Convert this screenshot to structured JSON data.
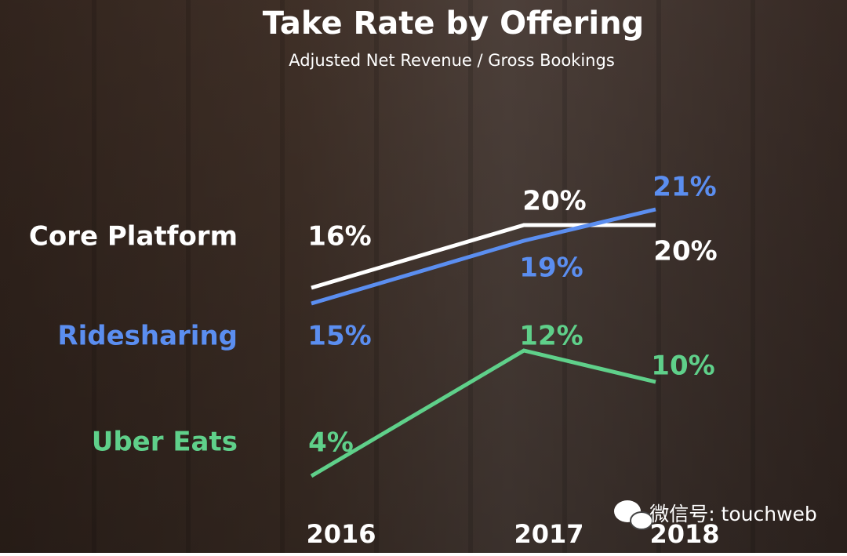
{
  "chart_data": {
    "type": "line",
    "title": "Take Rate by Offering",
    "subtitle": "Adjusted Net Revenue / Gross Bookings",
    "categories": [
      "2016",
      "2017",
      "2018"
    ],
    "series": [
      {
        "name": "Core Platform",
        "color": "#ffffff",
        "values": [
          16,
          20,
          20
        ],
        "value_labels": [
          "16%",
          "20%",
          "20%"
        ]
      },
      {
        "name": "Ridesharing",
        "color": "#5b8ef0",
        "values": [
          15,
          19,
          21
        ],
        "value_labels": [
          "15%",
          "19%",
          "21%"
        ]
      },
      {
        "name": "Uber Eats",
        "color": "#5fd08a",
        "values": [
          4,
          12,
          10
        ],
        "value_labels": [
          "4%",
          "12%",
          "10%"
        ]
      }
    ]
  },
  "watermark": "微信号: touchweb"
}
